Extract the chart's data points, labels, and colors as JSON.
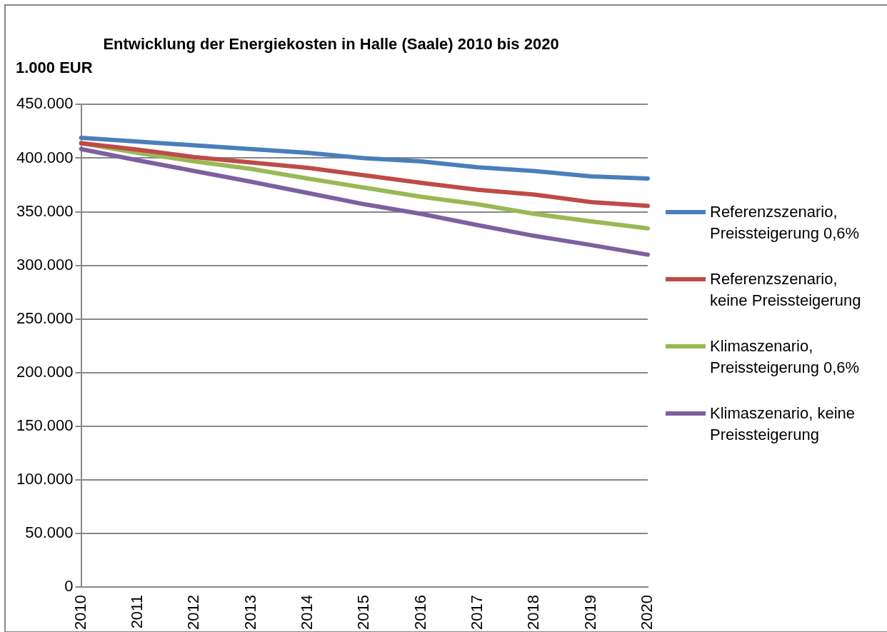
{
  "chart_data": {
    "type": "line",
    "title": "Entwicklung der Energiekosten in Halle (Saale) 2010 bis 2020",
    "ylabel": "1.000 EUR",
    "categories": [
      "2010",
      "2011",
      "2012",
      "2013",
      "2014",
      "2015",
      "2016",
      "2017",
      "2018",
      "2019",
      "2020"
    ],
    "series": [
      {
        "name": "Referenzszenario, Preissteigerung 0,6%",
        "color": "#4a7ebb",
        "values": [
          419000,
          415500,
          412000,
          408500,
          405000,
          400000,
          397000,
          391500,
          388000,
          383000,
          381000
        ]
      },
      {
        "name": "Referenzszenario, keine Preissteigerung",
        "color": "#be4b48",
        "values": [
          414000,
          408000,
          401000,
          396000,
          391000,
          384000,
          377000,
          370500,
          366000,
          359000,
          355500
        ]
      },
      {
        "name": "Klimaszenario, Preissteigerung 0,6%",
        "color": "#98b954",
        "values": [
          414000,
          405000,
          397000,
          390000,
          381000,
          372500,
          364000,
          357000,
          348000,
          341000,
          334500
        ]
      },
      {
        "name": "Klimaszenario, keine Preissteigerung",
        "color": "#7d60a0",
        "values": [
          408500,
          398000,
          388000,
          378000,
          367500,
          357000,
          348000,
          337500,
          327500,
          319000,
          310000
        ]
      }
    ],
    "ylim": [
      0,
      450000
    ],
    "yticks": [
      {
        "value": 0,
        "label": "0"
      },
      {
        "value": 50000,
        "label": "50.000"
      },
      {
        "value": 100000,
        "label": "100.000"
      },
      {
        "value": 150000,
        "label": "150.000"
      },
      {
        "value": 200000,
        "label": "200.000"
      },
      {
        "value": 250000,
        "label": "250.000"
      },
      {
        "value": 300000,
        "label": "300.000"
      },
      {
        "value": 350000,
        "label": "350.000"
      },
      {
        "value": 400000,
        "label": "400.000"
      },
      {
        "value": 450000,
        "label": "450.000"
      }
    ],
    "grid": "y",
    "legend": "right",
    "marker": "none",
    "line_style": "solid"
  }
}
